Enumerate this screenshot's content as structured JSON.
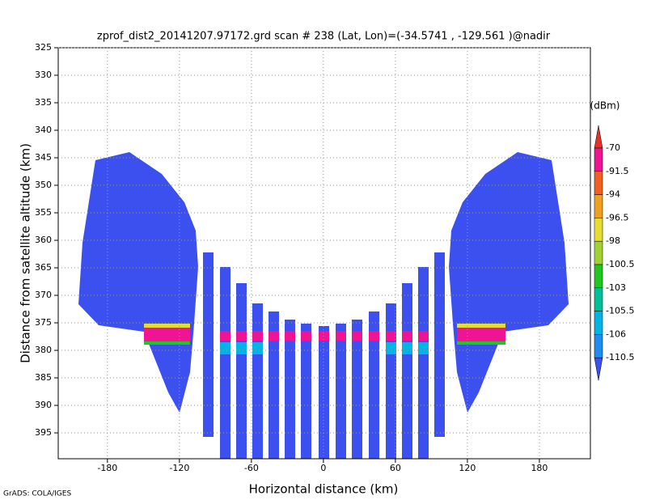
{
  "chart_data": {
    "type": "profile",
    "title": "zprof_dist2_20141207.97172.grd  scan # 238  (Lat, Lon)=(-34.5741 , -129.561 )@nadir",
    "x_label": "Horizontal distance (km)",
    "y_label": "Distance from satellite altitude (km)",
    "credit": "GrADS: COLA/IGES",
    "xlim": [
      -221,
      222.5
    ],
    "xticks": [
      -180,
      -120,
      -60,
      0,
      60,
      120,
      180
    ],
    "ylim": [
      325,
      399.7
    ],
    "y_inverted": true,
    "yticks": [
      325,
      330,
      335,
      340,
      345,
      350,
      355,
      360,
      365,
      370,
      375,
      380,
      385,
      390,
      395
    ],
    "grid": true,
    "colorbar": {
      "unit": "(dBm)",
      "labels": [
        -70,
        -91.5,
        -94,
        -96.5,
        -98,
        -100.5,
        -103,
        -105.5,
        -106,
        -110.5
      ],
      "colors": [
        "#e8302a",
        "#ee1493",
        "#f06020",
        "#f0a020",
        "#e6dc32",
        "#a0d232",
        "#1ec81e",
        "#00c09a",
        "#00b4e6",
        "#1e8cf0",
        "#3c50f0"
      ]
    }
  }
}
